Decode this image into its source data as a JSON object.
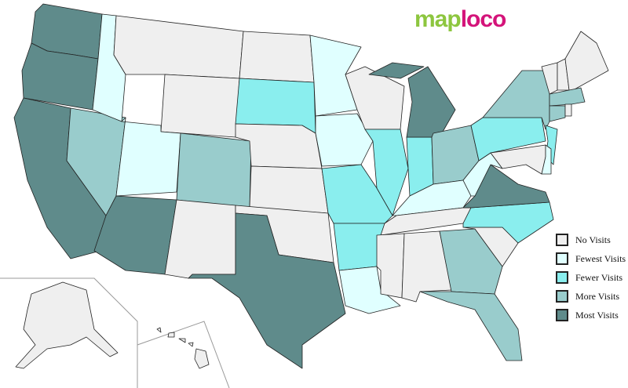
{
  "logo": {
    "part1": "map",
    "part2": "loco"
  },
  "colors": {
    "none": "#efefef",
    "fewest": "#e0ffff",
    "fewer": "#8aeeee",
    "more": "#99cccc",
    "most": "#5f8b8b"
  },
  "legend": [
    {
      "key": "none",
      "label": "No Visits"
    },
    {
      "key": "fewest",
      "label": "Fewest Visits"
    },
    {
      "key": "fewer",
      "label": "Fewer Visits"
    },
    {
      "key": "more",
      "label": "More Visits"
    },
    {
      "key": "most",
      "label": "Most Visits"
    }
  ],
  "states": {
    "WA": "most",
    "OR": "most",
    "CA": "most",
    "AZ": "most",
    "TX": "most",
    "MI": "most",
    "VA": "most",
    "NV": "more",
    "CO": "more",
    "NY": "more",
    "OH": "more",
    "GA": "more",
    "FL": "more",
    "MA": "more",
    "CT": "more",
    "SD": "fewer",
    "MO": "fewer",
    "AR": "fewer",
    "IL": "fewer",
    "IN": "fewer",
    "PA": "fewer",
    "NJ": "fewer",
    "NC": "fewer",
    "ID": "fewest",
    "UT": "fewest",
    "MN": "fewest",
    "IA": "fewest",
    "KY": "fewest",
    "WV": "fewest",
    "LA": "fewest",
    "DE": "fewest",
    "MT": "none",
    "WY": "none",
    "ND": "none",
    "NE": "none",
    "KS": "none",
    "OK": "none",
    "NM": "none",
    "WI": "none",
    "TN": "none",
    "MS": "none",
    "AL": "none",
    "SC": "none",
    "ME": "none",
    "VT": "none",
    "NH": "none",
    "MD": "none",
    "RI": "none",
    "AK": "none",
    "HI": "none"
  }
}
